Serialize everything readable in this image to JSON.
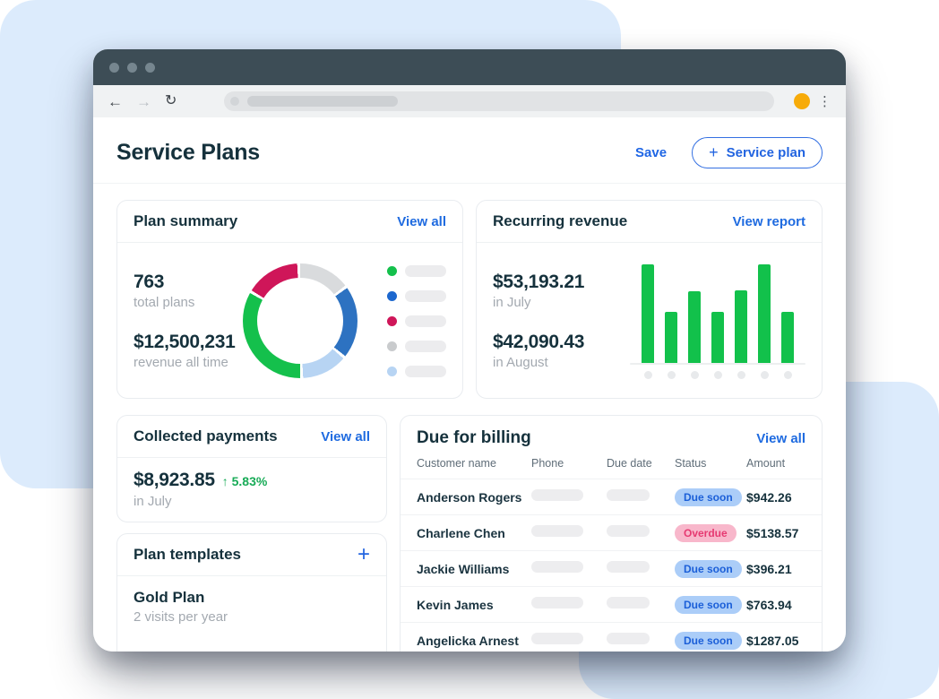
{
  "browser_chrome": {
    "icons": {
      "back": "←",
      "forward": "→",
      "reload": "↻",
      "menu": "⋮"
    },
    "traffic_dots": 3,
    "url_text": ""
  },
  "page_header": {
    "title": "Service Plans",
    "save_label": "Save",
    "new_button": {
      "icon": "+",
      "label": "Service plan"
    }
  },
  "plan_summary": {
    "title": "Plan summary",
    "action_label": "View all",
    "stats": [
      {
        "value": "763",
        "label": "total plans"
      },
      {
        "value": "$12,500,231",
        "label": "revenue all time"
      }
    ]
  },
  "recurring_revenue": {
    "title": "Recurring revenue",
    "action_label": "View report",
    "stats": [
      {
        "value": "$53,193.21",
        "label": "in July"
      },
      {
        "value": "$42,090.43",
        "label": "in August"
      }
    ]
  },
  "collected_payments": {
    "title": "Collected payments",
    "action_label": "View all",
    "amount": "$8,923.85",
    "delta_arrow": "↑",
    "delta": "5.83%",
    "period": "in July"
  },
  "plan_templates": {
    "title": "Plan templates",
    "add_icon": "+",
    "items": [
      {
        "name": "Gold Plan",
        "description": "2 visits per year"
      }
    ]
  },
  "due_for_billing": {
    "title": "Due for billing",
    "action_label": "View all",
    "columns": [
      "Customer name",
      "Phone",
      "Due date",
      "Status",
      "Amount"
    ],
    "rows": [
      {
        "name": "Anderson Rogers",
        "status": "Due soon",
        "status_type": "due-soon",
        "amount": "$942.26"
      },
      {
        "name": "Charlene Chen",
        "status": "Overdue",
        "status_type": "overdue",
        "amount": "$5138.57"
      },
      {
        "name": "Jackie Williams",
        "status": "Due soon",
        "status_type": "due-soon",
        "amount": "$396.21"
      },
      {
        "name": "Kevin James",
        "status": "Due soon",
        "status_type": "due-soon",
        "amount": "$763.94"
      },
      {
        "name": "Angelicka Arnest",
        "status": "Due soon",
        "status_type": "due-soon",
        "amount": "$1287.05"
      }
    ]
  },
  "chart_data": [
    {
      "type": "pie",
      "variant": "donut",
      "card": "Plan summary",
      "segments_clockwise_from_top": [
        {
          "color": "#d9dbdd",
          "start_deg": 0,
          "end_deg": 52,
          "pct": 14.4
        },
        {
          "color": "#2d72c1",
          "start_deg": 55,
          "end_deg": 128,
          "pct": 20.3
        },
        {
          "color": "#b7d4f3",
          "start_deg": 131,
          "end_deg": 177,
          "pct": 12.8
        },
        {
          "color": "#14c04c",
          "start_deg": 180,
          "end_deg": 299,
          "pct": 33.1
        },
        {
          "color": "#cf1659",
          "start_deg": 302,
          "end_deg": 357,
          "pct": 15.3
        }
      ],
      "legend_position": "right",
      "legend_labels_placeholder": true,
      "legend_dot_colors": [
        "#14c04c",
        "#1c67ce",
        "#cf1659",
        "#c9cbcd",
        "#b7d4f3"
      ]
    },
    {
      "type": "bar",
      "card": "Recurring revenue",
      "values_relative": [
        100,
        52,
        73,
        52,
        74,
        100,
        52
      ],
      "bar_color": "#12c14b",
      "x_labels_placeholder_dots": 7,
      "baseline": true,
      "grid": false
    }
  ],
  "colors": {
    "accent_blue": "#1f66e5",
    "deco_blue": "#dcebfc",
    "titlebar": "#3d4d56",
    "avatar_yellow": "#f7ab09",
    "bar_green": "#12c14b",
    "delta_green": "#18ab57",
    "dark_text": "#15313c",
    "muted_text": "#a3a9b0",
    "badge_due_soon_bg": "#abcdf8",
    "badge_due_soon_text": "#1b5fd8",
    "badge_overdue_bg": "#f8b7cb",
    "badge_overdue_text": "#e63a72"
  }
}
